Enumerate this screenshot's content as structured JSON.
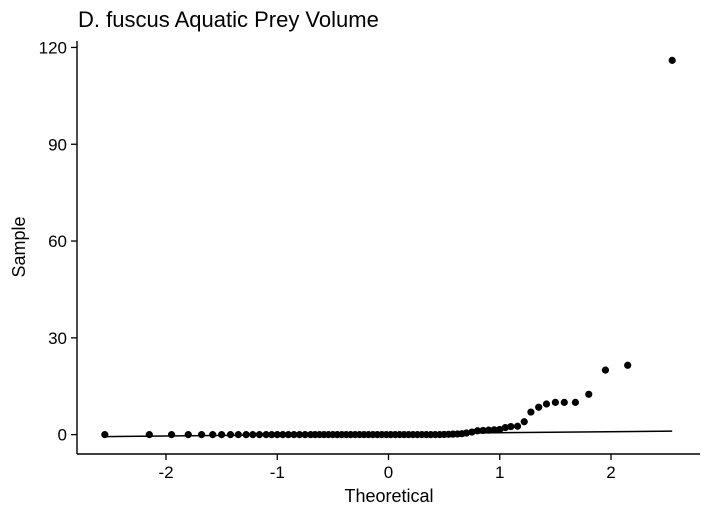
{
  "chart_data": {
    "type": "scatter",
    "title": "D. fuscus Aquatic Prey Volume",
    "xlabel": "Theoretical",
    "ylabel": "Sample",
    "xlim": [
      -2.8,
      2.8
    ],
    "ylim": [
      -6,
      122
    ],
    "xticks": [
      -2,
      -1,
      0,
      1,
      2
    ],
    "yticks": [
      0,
      30,
      60,
      90,
      120
    ],
    "grid": false,
    "colors": {
      "points": "#000000",
      "line": "#000000",
      "axis": "#000000"
    },
    "reference_line": {
      "x": [
        -2.55,
        2.55
      ],
      "y": [
        -0.6,
        1.1
      ]
    },
    "points": {
      "x": [
        -2.55,
        -2.15,
        -1.95,
        -1.8,
        -1.68,
        -1.58,
        -1.5,
        -1.42,
        -1.35,
        -1.28,
        -1.22,
        -1.16,
        -1.1,
        -1.05,
        -1.0,
        -0.95,
        -0.9,
        -0.85,
        -0.8,
        -0.75,
        -0.7,
        -0.66,
        -0.62,
        -0.58,
        -0.54,
        -0.5,
        -0.46,
        -0.42,
        -0.38,
        -0.34,
        -0.3,
        -0.26,
        -0.22,
        -0.18,
        -0.14,
        -0.1,
        -0.06,
        -0.02,
        0.02,
        0.06,
        0.1,
        0.14,
        0.18,
        0.22,
        0.26,
        0.3,
        0.34,
        0.38,
        0.42,
        0.46,
        0.5,
        0.54,
        0.58,
        0.62,
        0.66,
        0.7,
        0.75,
        0.8,
        0.85,
        0.9,
        0.95,
        1.0,
        1.05,
        1.1,
        1.16,
        1.22,
        1.28,
        1.35,
        1.42,
        1.5,
        1.58,
        1.68,
        1.8,
        1.95,
        2.15,
        2.55
      ],
      "y": [
        0,
        0,
        0,
        0,
        0,
        0,
        0,
        0,
        0,
        0,
        0,
        0,
        0,
        0,
        0,
        0,
        0,
        0,
        0,
        0,
        0,
        0,
        0,
        0,
        0,
        0,
        0,
        0,
        0,
        0,
        0,
        0,
        0,
        0,
        0,
        0,
        0,
        0,
        0,
        0,
        0,
        0,
        0,
        0,
        0,
        0,
        0,
        0,
        0,
        0,
        0.05,
        0.1,
        0.15,
        0.2,
        0.3,
        0.5,
        0.8,
        1.2,
        1.3,
        1.4,
        1.5,
        1.6,
        2.2,
        2.5,
        2.6,
        4.0,
        7.0,
        8.5,
        9.5,
        10.0,
        10.0,
        10.0,
        12.5,
        20.0,
        21.5,
        116.0
      ]
    }
  }
}
